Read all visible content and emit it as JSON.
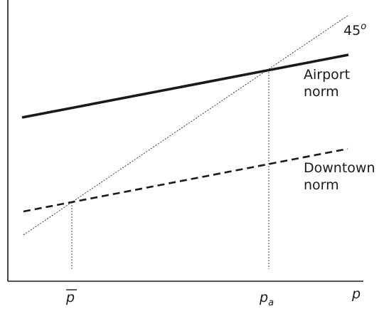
{
  "diagram": {
    "axis_labels": {
      "x": "p"
    },
    "line_labels": {
      "diagonal": "45",
      "diagonal_sup": "o",
      "airport_line1": "Airport",
      "airport_line2": "norm",
      "downtown_line1": "Downtown",
      "downtown_line2": "norm"
    },
    "tick_labels": {
      "p_bar": "p",
      "p_a": "p",
      "p_a_sub": "a"
    },
    "colors": {
      "ink": "#1a1a1a"
    }
  }
}
